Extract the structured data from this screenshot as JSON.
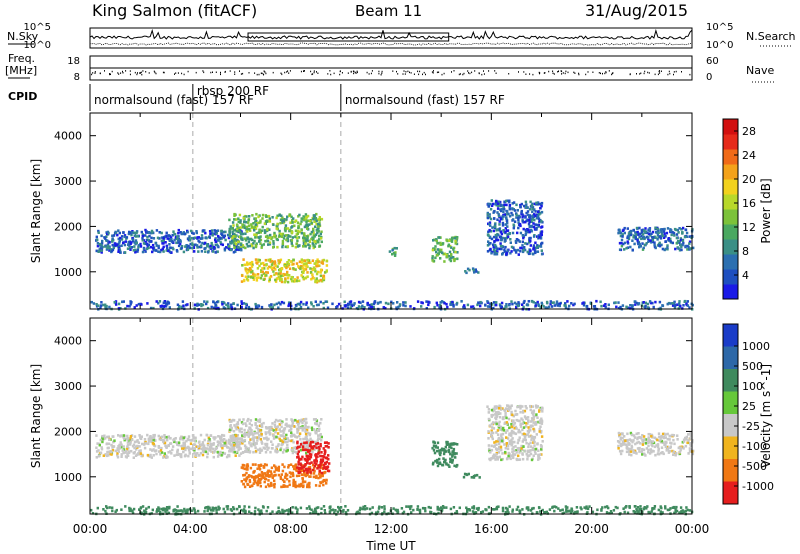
{
  "header": {
    "station": "King Salmon (fitACF)",
    "beam": "Beam 11",
    "date": "31/Aug/2015"
  },
  "top_panels": {
    "nsky_label": "N.Sky",
    "nsearch_label": "N.Search",
    "noise_left_ticks": [
      "10^5",
      "10^0"
    ],
    "noise_right_ticks": [
      "10^5",
      "10^0"
    ],
    "freq_label": "Freq.",
    "freq_unit": "[MHz]",
    "freq_ticks": [
      "18",
      "8"
    ],
    "nave_label": "Nave",
    "nave_ticks": [
      "60",
      "0"
    ],
    "cpid_label": "CPID",
    "cpid_segments": [
      {
        "label": "normalsound (fast) 157 RF",
        "start": 0,
        "end": 4.1
      },
      {
        "label": "rbsp 200 RF",
        "start": 4.1,
        "end": 10.0
      },
      {
        "label": "normalsound (fast) 157 RF",
        "start": 10.0,
        "end": 24
      }
    ]
  },
  "chart_data": [
    {
      "type": "heatmap",
      "name": "power",
      "xlabel": "",
      "ylabel": "Slant Range [km]",
      "xlim": [
        0,
        24
      ],
      "ylim": [
        180,
        4500
      ],
      "yticks": [
        "1000",
        "2000",
        "3000",
        "4000"
      ],
      "colorbar": {
        "label": "Power [dB]",
        "ticks": [
          "4",
          "8",
          "12",
          "16",
          "20",
          "24",
          "28"
        ],
        "range": [
          0,
          30
        ],
        "colors": [
          "#1a1ae6",
          "#1e4fc0",
          "#2b6fb0",
          "#3a8f86",
          "#4aa860",
          "#7cc23a",
          "#b8d82a",
          "#f2d21e",
          "#f4a21a",
          "#f06a18",
          "#e62a1a",
          "#d20f0f"
        ]
      },
      "echo_regions": [
        {
          "t": [
            0.2,
            6.0
          ],
          "range": [
            1450,
            1950
          ],
          "power": 4
        },
        {
          "t": [
            5.5,
            9.2
          ],
          "range": [
            1550,
            2300
          ],
          "power": 12
        },
        {
          "t": [
            6.0,
            9.4
          ],
          "range": [
            800,
            1300
          ],
          "power": 18
        },
        {
          "t": [
            11.9,
            12.2
          ],
          "range": [
            1350,
            1550
          ],
          "power": 10
        },
        {
          "t": [
            13.6,
            14.6
          ],
          "range": [
            1250,
            1800
          ],
          "power": 12
        },
        {
          "t": [
            14.8,
            15.5
          ],
          "range": [
            1000,
            1100
          ],
          "power": 5
        },
        {
          "t": [
            15.8,
            18.0
          ],
          "range": [
            1400,
            2600
          ],
          "power": 4
        },
        {
          "t": [
            21.0,
            24.0
          ],
          "range": [
            1500,
            2000
          ],
          "power": 5
        },
        {
          "t": [
            0,
            24
          ],
          "range": [
            200,
            380
          ],
          "power": 4
        }
      ]
    },
    {
      "type": "heatmap",
      "name": "velocity",
      "xlabel": "Time UT",
      "ylabel": "Slant Range [km]",
      "xlim": [
        0,
        24
      ],
      "ylim": [
        180,
        4500
      ],
      "xticks": [
        "00:00",
        "04:00",
        "08:00",
        "12:00",
        "16:00",
        "20:00",
        "00:00"
      ],
      "yticks": [
        "1000",
        "2000",
        "3000",
        "4000"
      ],
      "colorbar": {
        "label": "Velocity [m s^-1]",
        "ticks": [
          "1000",
          "500",
          "100",
          "25",
          "-25",
          "-100",
          "-500",
          "-1000"
        ],
        "colors": [
          "#1a3cc8",
          "#2d68a8",
          "#3f8a5e",
          "#66c83a",
          "#c8c8c8",
          "#f0b41e",
          "#f07814",
          "#e61e1e"
        ]
      },
      "echo_regions": [
        {
          "t": [
            0.2,
            6.0
          ],
          "range": [
            1450,
            1950
          ],
          "velocity": 0
        },
        {
          "t": [
            5.5,
            9.2
          ],
          "range": [
            1550,
            2300
          ],
          "velocity": 0
        },
        {
          "t": [
            6.0,
            9.4
          ],
          "range": [
            800,
            1300
          ],
          "velocity": -150
        },
        {
          "t": [
            8.2,
            9.5
          ],
          "range": [
            1100,
            1800
          ],
          "velocity": -500
        },
        {
          "t": [
            13.6,
            14.6
          ],
          "range": [
            1250,
            1800
          ],
          "velocity": 150
        },
        {
          "t": [
            14.8,
            15.5
          ],
          "range": [
            1000,
            1100
          ],
          "velocity": 100
        },
        {
          "t": [
            15.8,
            18.0
          ],
          "range": [
            1400,
            2600
          ],
          "velocity": 0
        },
        {
          "t": [
            21.0,
            24.0
          ],
          "range": [
            1500,
            2000
          ],
          "velocity": 0
        },
        {
          "t": [
            0,
            24
          ],
          "range": [
            200,
            380
          ],
          "velocity": 100
        }
      ]
    }
  ]
}
